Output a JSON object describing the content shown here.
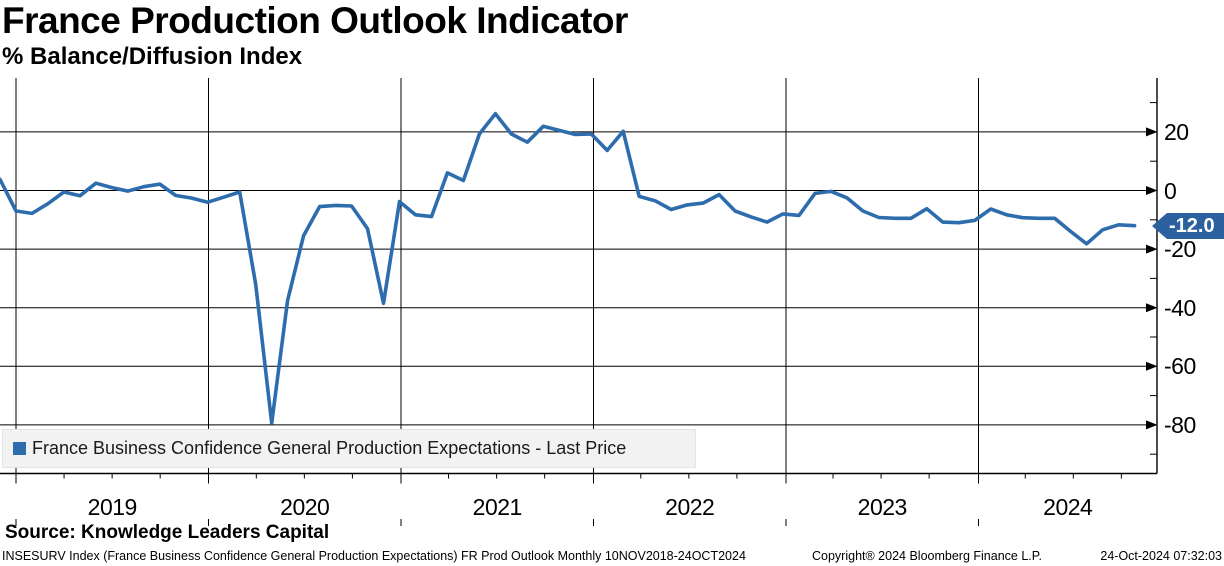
{
  "header": {
    "title": "France Production Outlook Indicator",
    "subtitle": "% Balance/Diffusion Index"
  },
  "legend": {
    "marker_color": "#2e6dad",
    "label": "France Business Confidence General Production Expectations - Last Price"
  },
  "last_price_badge": {
    "value": "-12.0",
    "bg_color": "#2a619e",
    "text_color": "#ffffff"
  },
  "footer": {
    "source": "Source: Knowledge Leaders Capital",
    "description": "INSESURV Index (France Business Confidence General Production Expectations) FR Prod Outlook  Monthly 10NOV2018-24OCT2024",
    "copyright": "Copyright® 2024 Bloomberg Finance L.P.",
    "timestamp": "24-Oct-2024 07:32:03"
  },
  "chart_data": {
    "type": "line",
    "title": "France Production Outlook Indicator",
    "ylabel": "% Balance/Diffusion Index",
    "grid": true,
    "legend_position": "bottom-left",
    "x_tick_labels": [
      "2019",
      "2020",
      "2021",
      "2022",
      "2023",
      "2024"
    ],
    "y_ticks": [
      20,
      0,
      -20,
      -40,
      -60,
      -80
    ],
    "y_minor_ticks": [
      30,
      10,
      -10,
      -30,
      -50,
      -70,
      -90
    ],
    "ylim": [
      -96,
      37.5
    ],
    "last_value": -12.0,
    "series": [
      {
        "name": "France Business Confidence General Production Expectations - Last Price",
        "color": "#2e6dad",
        "frequency": "monthly",
        "start": "2018-11",
        "end": "2024-10",
        "values": [
          3.8,
          -7,
          -7.8,
          -4.5,
          -0.5,
          -1.8,
          2.5,
          1,
          -0.2,
          1.3,
          2.2,
          -1.7,
          -2.6,
          -4,
          -2.3,
          -0.5,
          -32,
          -79.4,
          -37.5,
          -15.4,
          -5.5,
          -5.1,
          -5.3,
          -13,
          -38.5,
          -3.8,
          -8.3,
          -8.9,
          6,
          3.4,
          19.3,
          26.2,
          19.3,
          16.5,
          21.9,
          20.5,
          19.1,
          19.3,
          13.7,
          20.2,
          -2,
          -3.5,
          -6.5,
          -4.9,
          -4.3,
          -1.4,
          -7,
          -9,
          -10.8,
          -8,
          -8.5,
          -1,
          -0.3,
          -2.5,
          -7,
          -9.2,
          -9.5,
          -9.5,
          -6.2,
          -10.8,
          -11,
          -10.2,
          -6.3,
          -8.3,
          -9.3,
          -9.5,
          -9.5,
          -14,
          -18.2,
          -13.4,
          -11.7,
          -12
        ]
      }
    ]
  }
}
